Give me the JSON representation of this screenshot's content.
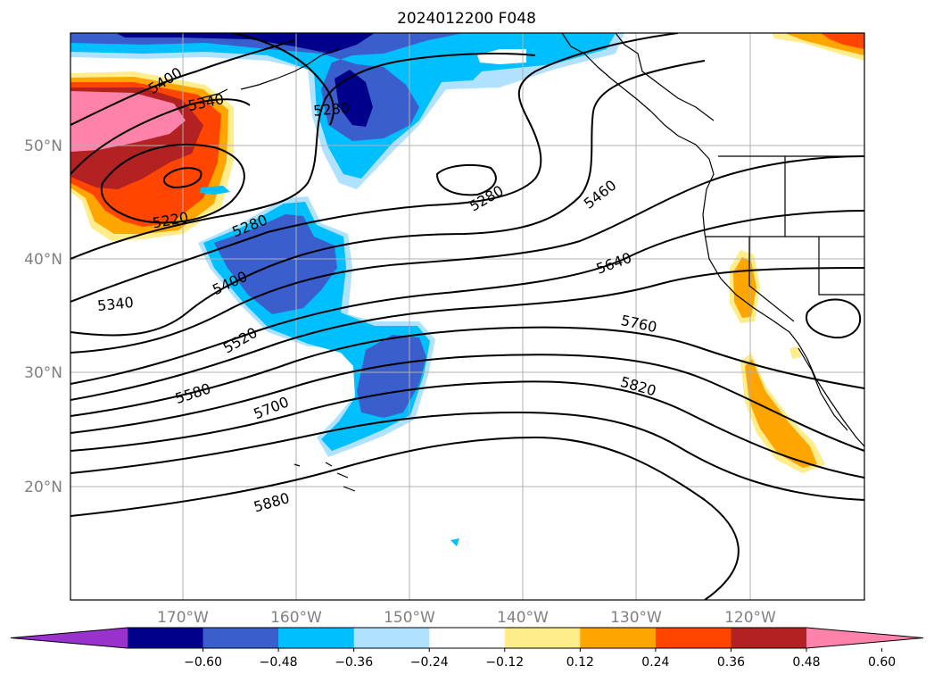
{
  "title": "2024012200 F048",
  "map": {
    "lat_labels": [
      "50°N",
      "40°N",
      "30°N",
      "20°N"
    ],
    "lon_labels": [
      "170°W",
      "160°W",
      "150°W",
      "140°W",
      "130°W",
      "120°W"
    ],
    "contour_labels": [
      "5400",
      "5340",
      "5280",
      "5220",
      "5280",
      "5280",
      "5460",
      "5340",
      "5400",
      "5640",
      "5520",
      "5760",
      "5580",
      "5700",
      "5820",
      "5880"
    ],
    "contour_color": "#000000",
    "grid_color": "#b0b0b0"
  },
  "colorbar": {
    "ticks": [
      "−0.60",
      "−0.48",
      "−0.36",
      "−0.24",
      "−0.12",
      "0.12",
      "0.24",
      "0.36",
      "0.48",
      "0.60"
    ],
    "colors": [
      "#9932cc",
      "#00008b",
      "#3a5fcd",
      "#00bfff",
      "#b0e2ff",
      "#ffffff",
      "#ffec8b",
      "#ffa500",
      "#ff4500",
      "#b22222",
      "#ff82ab"
    ]
  }
}
